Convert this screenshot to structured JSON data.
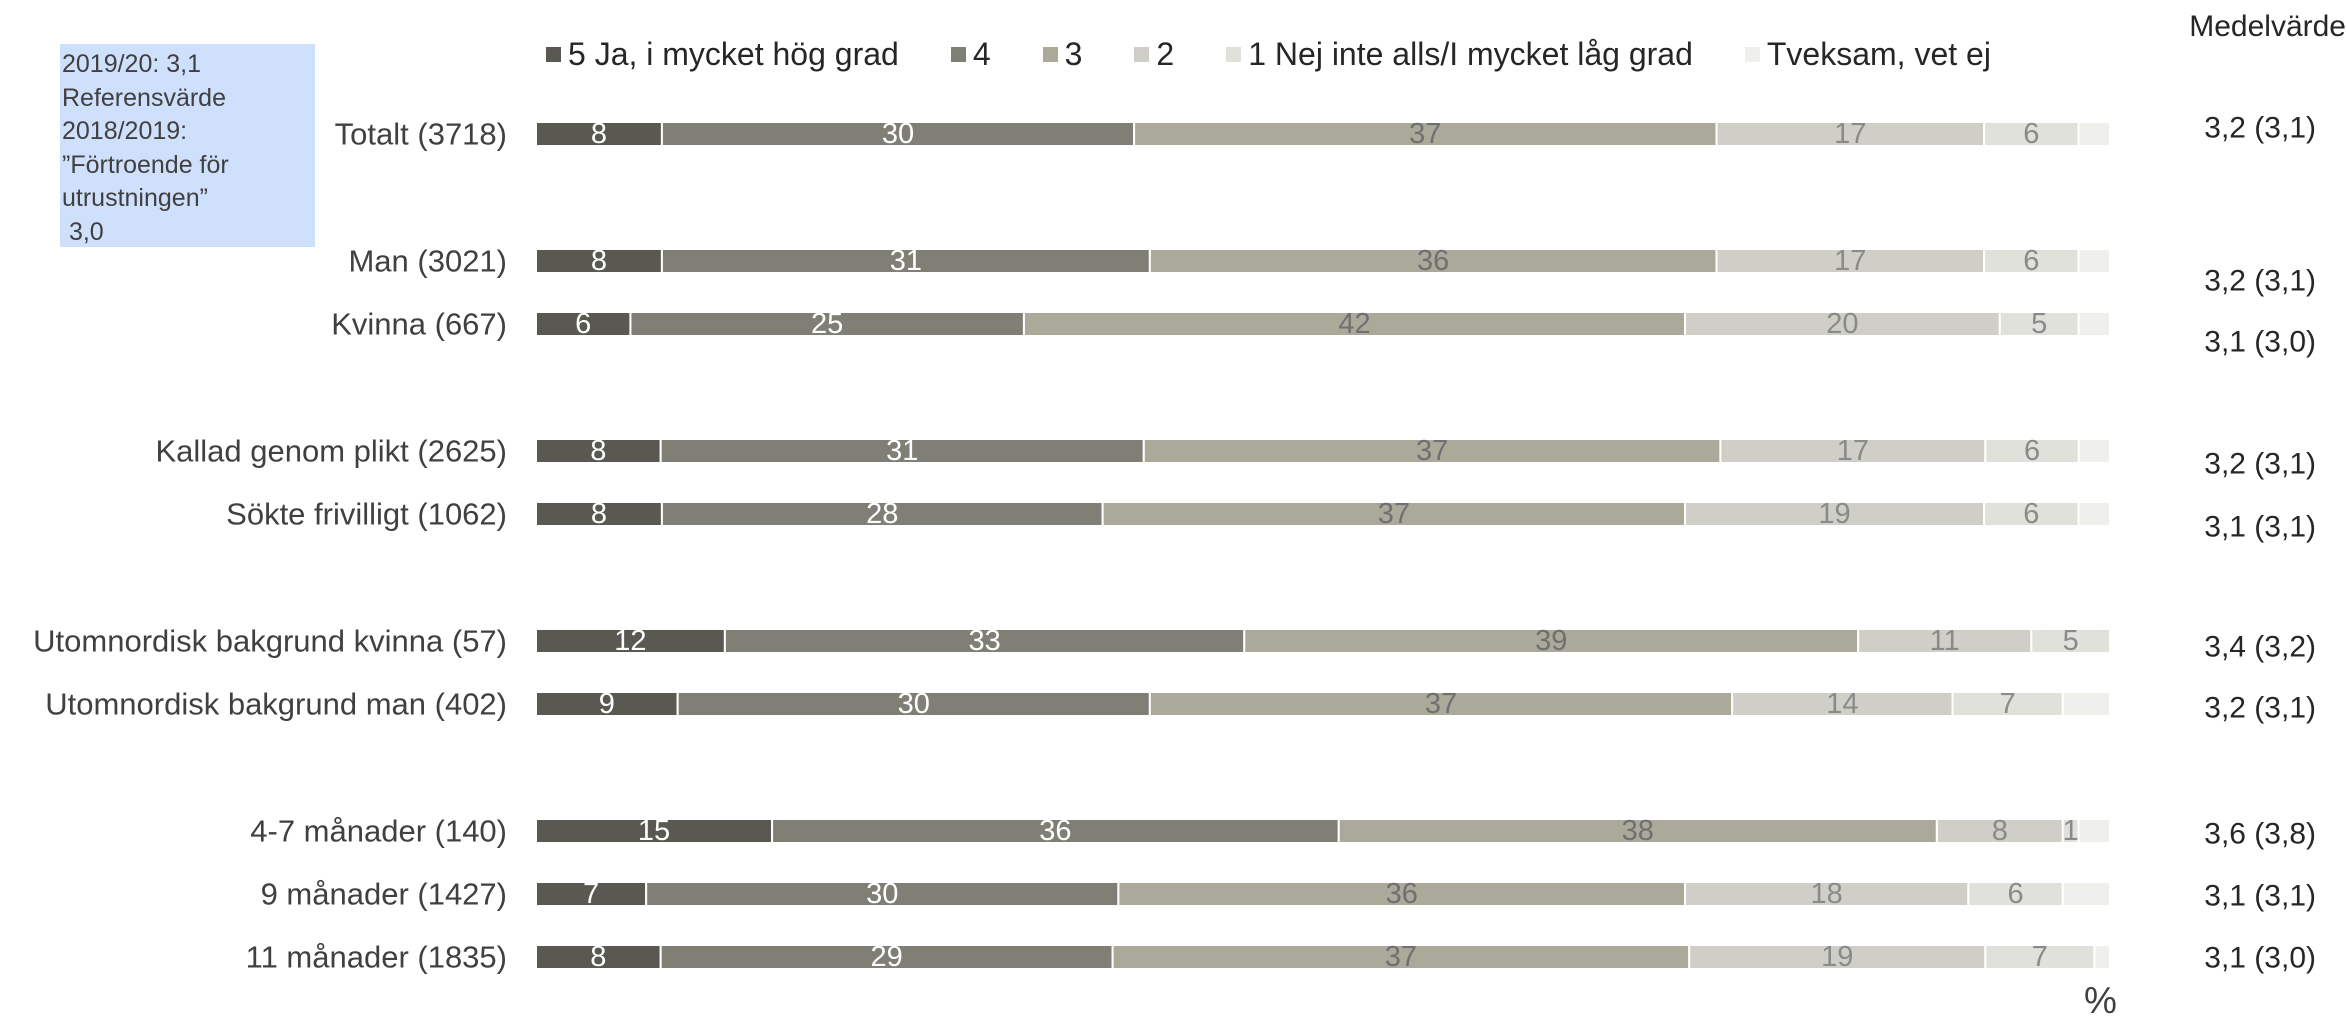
{
  "note": {
    "lines": [
      "2019/20: 3,1",
      "Referensvärde",
      "2018/2019:",
      "”Förtroende för",
      "utrustningen”",
      " 3,0"
    ]
  },
  "chart_data": {
    "type": "bar",
    "orientation": "horizontal",
    "stacked": true,
    "percent": true,
    "unit_label": "%",
    "mean_header": "Medelvärde",
    "series": [
      {
        "name": "5 Ja, i mycket hög grad",
        "color": "#595952",
        "label_color": "#ffffff"
      },
      {
        "name": "4",
        "color": "#807f75",
        "label_color": "#ffffff"
      },
      {
        "name": "3",
        "color": "#aaa99a",
        "label_color": "#707070"
      },
      {
        "name": "2",
        "color": "#cfcfc7",
        "label_color": "#8a8a8a"
      },
      {
        "name": "1 Nej inte alls/I mycket låg grad",
        "color": "#e1e1dc",
        "label_color": "#8a8a8a"
      },
      {
        "name": "Tveksam, vet ej",
        "color": "#efefec",
        "label_color": "#8a8a8a"
      }
    ],
    "rows": [
      {
        "category": "Totalt (3718)",
        "values": [
          8,
          30,
          37,
          17,
          6,
          2
        ],
        "labels": [
          "8",
          "30",
          "37",
          "17",
          "6",
          ""
        ],
        "mean": "3,2 (3,1)"
      },
      {
        "category": "Man (3021)",
        "values": [
          8,
          31,
          36,
          17,
          6,
          2
        ],
        "labels": [
          "8",
          "31",
          "36",
          "17",
          "6",
          ""
        ],
        "mean": "3,2 (3,1)"
      },
      {
        "category": "Kvinna (667)",
        "values": [
          6,
          25,
          42,
          20,
          5,
          2
        ],
        "labels": [
          "6",
          "25",
          "42",
          "20",
          "5",
          ""
        ],
        "mean": "3,1 (3,0)"
      },
      {
        "category": "Kallad genom plikt (2625)",
        "values": [
          8,
          31,
          37,
          17,
          6,
          2
        ],
        "labels": [
          "8",
          "31",
          "37",
          "17",
          "6",
          ""
        ],
        "mean": "3,2 (3,1)"
      },
      {
        "category": "Sökte frivilligt (1062)",
        "values": [
          8,
          28,
          37,
          19,
          6,
          2
        ],
        "labels": [
          "8",
          "28",
          "37",
          "19",
          "6",
          ""
        ],
        "mean": "3,1 (3,1)"
      },
      {
        "category": "Utomnordisk bakgrund kvinna (57)",
        "values": [
          12,
          33,
          39,
          11,
          5,
          0
        ],
        "labels": [
          "12",
          "33",
          "39",
          "11",
          "5",
          ""
        ],
        "mean": "3,4 (3,2)"
      },
      {
        "category": "Utomnordisk bakgrund man (402)",
        "values": [
          9,
          30,
          37,
          14,
          7,
          3
        ],
        "labels": [
          "9",
          "30",
          "37",
          "14",
          "7",
          ""
        ],
        "mean": "3,2 (3,1)"
      },
      {
        "category": "4-7 månader (140)",
        "values": [
          15,
          36,
          38,
          8,
          1,
          2
        ],
        "labels": [
          "15",
          "36",
          "38",
          "8",
          "1",
          ""
        ],
        "mean": "3,6 (3,8)"
      },
      {
        "category": "9 månader (1427)",
        "values": [
          7,
          30,
          36,
          18,
          6,
          3
        ],
        "labels": [
          "7",
          "30",
          "36",
          "18",
          "6",
          ""
        ],
        "mean": "3,1 (3,1)"
      },
      {
        "category": "11 månader (1835)",
        "values": [
          8,
          29,
          37,
          19,
          7,
          1
        ],
        "labels": [
          "8",
          "29",
          "37",
          "19",
          "7",
          ""
        ],
        "mean": "3,1 (3,0)"
      }
    ]
  }
}
